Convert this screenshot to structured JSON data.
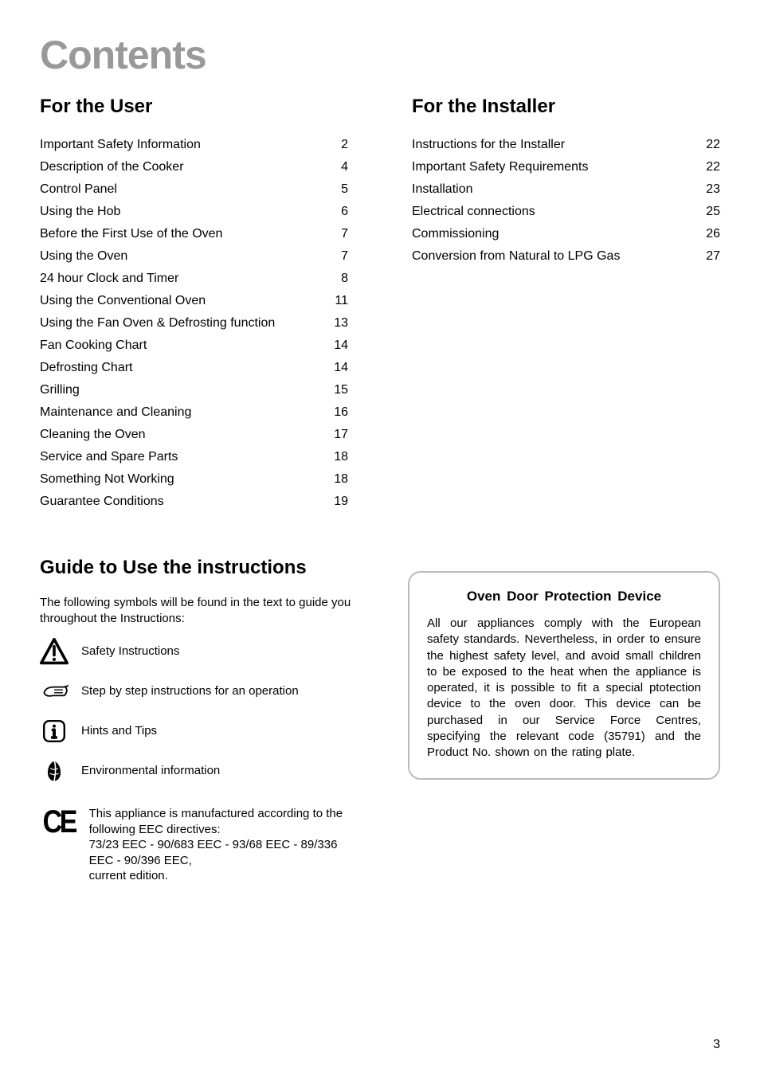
{
  "page": {
    "number": "3",
    "title": "Contents"
  },
  "sections": {
    "user": {
      "heading": "For the User",
      "items": [
        {
          "title": "Important Safety Information",
          "page": "2"
        },
        {
          "title": "Description of the Cooker",
          "page": "4"
        },
        {
          "title": "Control Panel",
          "page": "5"
        },
        {
          "title": "Using the Hob",
          "page": "6"
        },
        {
          "title": "Before the First Use of the Oven",
          "page": "7"
        },
        {
          "title": "Using the Oven",
          "page": "7"
        },
        {
          "title": "24 hour Clock and Timer",
          "page": "8"
        },
        {
          "title": "Using the Conventional Oven",
          "page": "11"
        },
        {
          "title": "Using the Fan Oven & Defrosting function",
          "page": "13"
        },
        {
          "title": "Fan Cooking Chart",
          "page": "14"
        },
        {
          "title": "Defrosting Chart",
          "page": "14"
        },
        {
          "title": "Grilling",
          "page": "15"
        },
        {
          "title": "Maintenance and Cleaning",
          "page": "16"
        },
        {
          "title": "Cleaning the Oven",
          "page": "17"
        },
        {
          "title": "Service and Spare Parts",
          "page": "18"
        },
        {
          "title": "Something Not Working",
          "page": "18"
        },
        {
          "title": "Guarantee Conditions",
          "page": "19"
        }
      ]
    },
    "installer": {
      "heading": "For the Installer",
      "items": [
        {
          "title": "Instructions for the Installer",
          "page": "22"
        },
        {
          "title": "Important Safety Requirements",
          "page": "22"
        },
        {
          "title": "Installation",
          "page": "23"
        },
        {
          "title": "Electrical connections",
          "page": "25"
        },
        {
          "title": "Commissioning",
          "page": "26"
        },
        {
          "title": "Conversion from Natural to LPG Gas",
          "page": "27"
        }
      ]
    }
  },
  "guide": {
    "heading": "Guide to Use the instructions",
    "intro": "The following symbols will be found in the text to guide you throughout the Instructions:",
    "symbols": [
      {
        "label": "Safety Instructions",
        "icon": "warning"
      },
      {
        "label": "Step by step instructions for an operation",
        "icon": "hand"
      },
      {
        "label": "Hints and Tips",
        "icon": "info"
      },
      {
        "label": "Environmental information",
        "icon": "leaf"
      }
    ],
    "ce_text": "This appliance is manufactured according to the following EEC directives:\n73/23 EEC - 90/683 EEC - 93/68 EEC - 89/336 EEC - 90/396 EEC,\ncurrent edition."
  },
  "callout": {
    "title": "Oven Door Protection Device",
    "body": "All our appliances comply with the European safety standards. Nevertheless, in order to ensure the highest safety level, and avoid small children to be exposed to the heat when the appliance is operated, it is possible to fit a special ptotection device to the oven door. This device can be purchased in our Service Force Centres, specifying the relevant code (35791) and the Product No. shown on the rating plate."
  },
  "style": {
    "title_color": "#999999",
    "border_color": "#bbbbbb",
    "text_color": "#000000",
    "background": "#ffffff",
    "title_fontsize": 50,
    "heading_fontsize": 24,
    "body_fontsize": 15,
    "toc_fontsize": 16
  }
}
